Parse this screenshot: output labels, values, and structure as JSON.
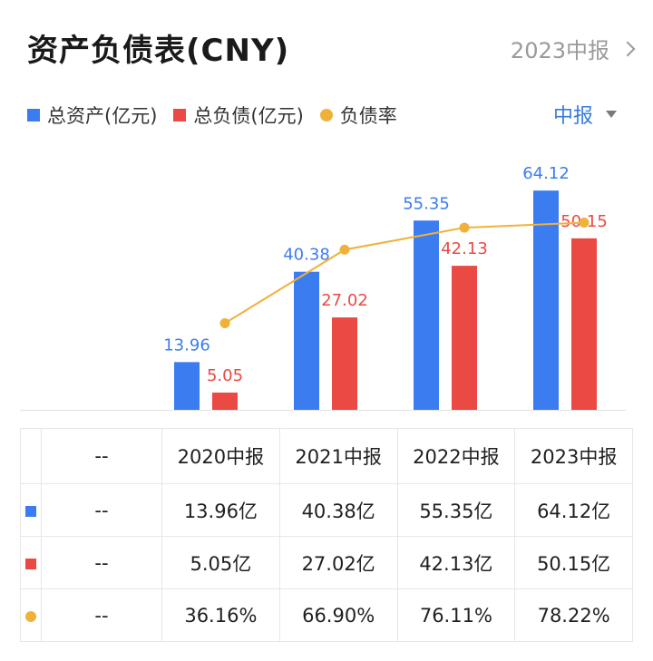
{
  "header": {
    "title": "资产负债表(CNY)",
    "period_link": "2023中报"
  },
  "legend": {
    "items": [
      {
        "label": "总资产(亿元)",
        "color": "#3b7cf0",
        "shape": "square"
      },
      {
        "label": "总负债(亿元)",
        "color": "#ea4a43",
        "shape": "square"
      },
      {
        "label": "负债率",
        "color": "#f0b13a",
        "shape": "dot"
      }
    ],
    "period_select": "中报"
  },
  "chart_data": {
    "type": "bar",
    "title": "资产负债表(CNY)",
    "categories": [
      "2020中报",
      "2021中报",
      "2022中报",
      "2023中报"
    ],
    "series": [
      {
        "name": "总资产(亿元)",
        "type": "bar",
        "color": "#3b7cf0",
        "values": [
          13.96,
          40.38,
          55.35,
          64.12
        ]
      },
      {
        "name": "总负债(亿元)",
        "type": "bar",
        "color": "#ea4a43",
        "values": [
          5.05,
          27.02,
          42.13,
          50.15
        ]
      },
      {
        "name": "负债率",
        "type": "line",
        "color": "#f0b13a",
        "values": [
          36.16,
          66.9,
          76.11,
          78.22
        ],
        "unit": "%"
      }
    ],
    "ylim_bars": [
      0,
      70
    ],
    "ylim_line": [
      0,
      100
    ],
    "grid": false,
    "legend_position": "top-left"
  },
  "table": {
    "header": [
      "--",
      "2020中报",
      "2021中报",
      "2022中报",
      "2023中报"
    ],
    "rows": [
      {
        "marker_color": "#3b7cf0",
        "marker": "square",
        "cells": [
          "--",
          "13.96亿",
          "40.38亿",
          "55.35亿",
          "64.12亿"
        ]
      },
      {
        "marker_color": "#ea4a43",
        "marker": "square",
        "cells": [
          "--",
          "5.05亿",
          "27.02亿",
          "42.13亿",
          "50.15亿"
        ]
      },
      {
        "marker_color": "#f0b13a",
        "marker": "dot",
        "cells": [
          "--",
          "36.16%",
          "66.90%",
          "76.11%",
          "78.22%"
        ]
      }
    ]
  }
}
